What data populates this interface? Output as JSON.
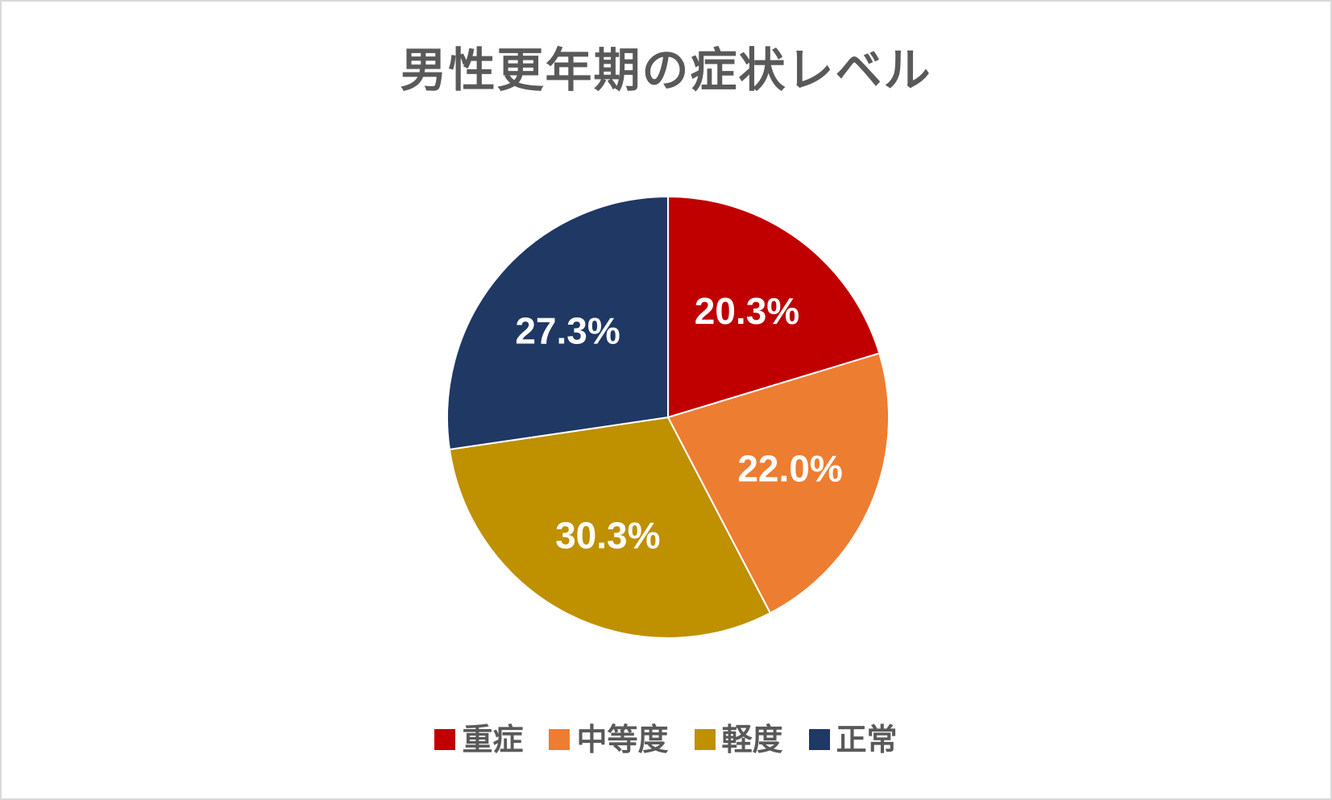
{
  "chart_data": {
    "type": "pie",
    "title": "男性更年期の症状レベル",
    "categories": [
      "重症",
      "中等度",
      "軽度",
      "正常"
    ],
    "values": [
      20.3,
      22.0,
      30.3,
      27.3
    ],
    "labels": [
      "20.3%",
      "22.0%",
      "30.3%",
      "27.3%"
    ],
    "colors": [
      "#c00000",
      "#ed7d31",
      "#bf9000",
      "#1f3864"
    ],
    "unit": "%",
    "start_angle_deg": 0,
    "direction": "clockwise",
    "legend_position": "bottom"
  },
  "legend": {
    "items": [
      {
        "label": "重症",
        "color": "#c00000"
      },
      {
        "label": "中等度",
        "color": "#ed7d31"
      },
      {
        "label": "軽度",
        "color": "#bf9000"
      },
      {
        "label": "正常",
        "color": "#1f3864"
      }
    ]
  }
}
